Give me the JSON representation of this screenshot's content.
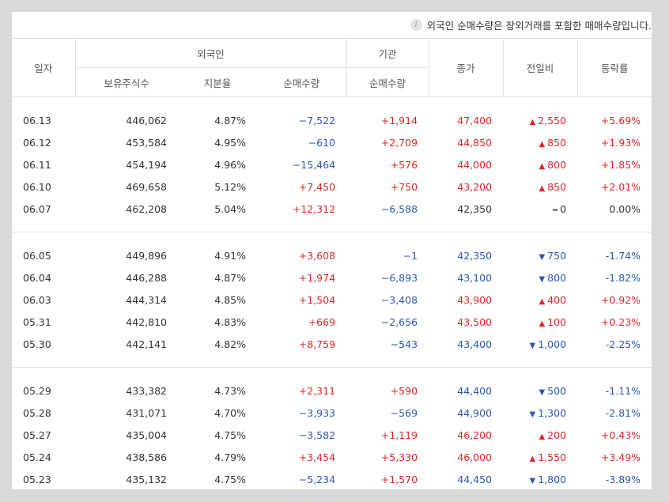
{
  "notice": {
    "icon": "info-icon",
    "text": "외국인 순매수량은 장외거래를 포함한 매매수량입니다."
  },
  "headers": {
    "date": "일자",
    "foreign": "외국인",
    "institution": "기관",
    "close": "종가",
    "change": "전일비",
    "rate": "등락률",
    "holdings": "보유주식수",
    "share": "지분율",
    "net_buy": "순매수량",
    "inst_net_buy": "순매수량"
  },
  "colors": {
    "up": "#e1262a",
    "down": "#2a57b6",
    "flat": "#333333"
  },
  "groups": [
    [
      {
        "date": "06.13",
        "holdings": "446,062",
        "share": "4.87%",
        "foreign_net": "−7,522",
        "inst_net": "+1,914",
        "close": "47,400",
        "dir": "up",
        "change": "2,550",
        "rate": "+5.69%"
      },
      {
        "date": "06.12",
        "holdings": "453,584",
        "share": "4.95%",
        "foreign_net": "−610",
        "inst_net": "+2,709",
        "close": "44,850",
        "dir": "up",
        "change": "850",
        "rate": "+1.93%"
      },
      {
        "date": "06.11",
        "holdings": "454,194",
        "share": "4.96%",
        "foreign_net": "−15,464",
        "inst_net": "+576",
        "close": "44,000",
        "dir": "up",
        "change": "800",
        "rate": "+1.85%"
      },
      {
        "date": "06.10",
        "holdings": "469,658",
        "share": "5.12%",
        "foreign_net": "+7,450",
        "inst_net": "+750",
        "close": "43,200",
        "dir": "up",
        "change": "850",
        "rate": "+2.01%"
      },
      {
        "date": "06.07",
        "holdings": "462,208",
        "share": "5.04%",
        "foreign_net": "+12,312",
        "inst_net": "−6,588",
        "close": "42,350",
        "dir": "flat",
        "change": "0",
        "rate": "0.00%"
      }
    ],
    [
      {
        "date": "06.05",
        "holdings": "449,896",
        "share": "4.91%",
        "foreign_net": "+3,608",
        "inst_net": "−1",
        "close": "42,350",
        "dir": "down",
        "change": "750",
        "rate": "-1.74%"
      },
      {
        "date": "06.04",
        "holdings": "446,288",
        "share": "4.87%",
        "foreign_net": "+1,974",
        "inst_net": "−6,893",
        "close": "43,100",
        "dir": "down",
        "change": "800",
        "rate": "-1.82%"
      },
      {
        "date": "06.03",
        "holdings": "444,314",
        "share": "4.85%",
        "foreign_net": "+1,504",
        "inst_net": "−3,408",
        "close": "43,900",
        "dir": "up",
        "change": "400",
        "rate": "+0.92%"
      },
      {
        "date": "05.31",
        "holdings": "442,810",
        "share": "4.83%",
        "foreign_net": "+669",
        "inst_net": "−2,656",
        "close": "43,500",
        "dir": "up",
        "change": "100",
        "rate": "+0.23%"
      },
      {
        "date": "05.30",
        "holdings": "442,141",
        "share": "4.82%",
        "foreign_net": "+8,759",
        "inst_net": "−543",
        "close": "43,400",
        "dir": "down",
        "change": "1,000",
        "rate": "-2.25%"
      }
    ],
    [
      {
        "date": "05.29",
        "holdings": "433,382",
        "share": "4.73%",
        "foreign_net": "+2,311",
        "inst_net": "+590",
        "close": "44,400",
        "dir": "down",
        "change": "500",
        "rate": "-1.11%"
      },
      {
        "date": "05.28",
        "holdings": "431,071",
        "share": "4.70%",
        "foreign_net": "−3,933",
        "inst_net": "−569",
        "close": "44,900",
        "dir": "down",
        "change": "1,300",
        "rate": "-2.81%"
      },
      {
        "date": "05.27",
        "holdings": "435,004",
        "share": "4.75%",
        "foreign_net": "−3,582",
        "inst_net": "+1,119",
        "close": "46,200",
        "dir": "up",
        "change": "200",
        "rate": "+0.43%"
      },
      {
        "date": "05.24",
        "holdings": "438,586",
        "share": "4.79%",
        "foreign_net": "+3,454",
        "inst_net": "+5,330",
        "close": "46,000",
        "dir": "up",
        "change": "1,550",
        "rate": "+3.49%"
      },
      {
        "date": "05.23",
        "holdings": "435,132",
        "share": "4.75%",
        "foreign_net": "−5,234",
        "inst_net": "+1,570",
        "close": "44,450",
        "dir": "down",
        "change": "1,800",
        "rate": "-3.89%"
      }
    ]
  ]
}
